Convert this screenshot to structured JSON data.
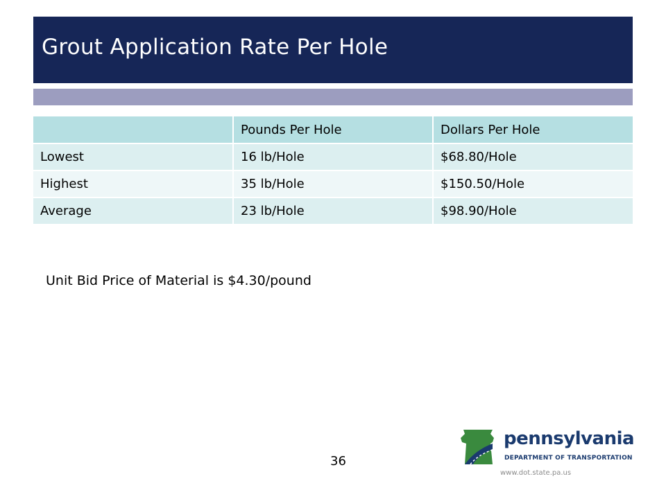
{
  "slide": {
    "title": "Grout Application Rate Per Hole",
    "page_number": "36",
    "note": "Unit Bid Price of Material is $4.30/pound"
  },
  "table": {
    "headers": [
      "",
      "Pounds Per Hole",
      "Dollars Per Hole"
    ],
    "rows": [
      [
        "Lowest",
        "16 lb/Hole",
        "$68.80/Hole"
      ],
      [
        "Highest",
        "35 lb/Hole",
        "$150.50/Hole"
      ],
      [
        "Average",
        "23 lb/Hole",
        "$98.90/Hole"
      ]
    ]
  },
  "footer": {
    "logo_name": "pennsylvania",
    "logo_department": "DEPARTMENT OF TRANSPORTATION",
    "url": "www.dot.state.pa.us"
  },
  "colors": {
    "title_bar": "#162657",
    "accent_bar": "#9c9dbf",
    "table_header": "#b5dfe2",
    "logo_green": "#3a8a3e",
    "logo_navy": "#1a3a6e"
  }
}
